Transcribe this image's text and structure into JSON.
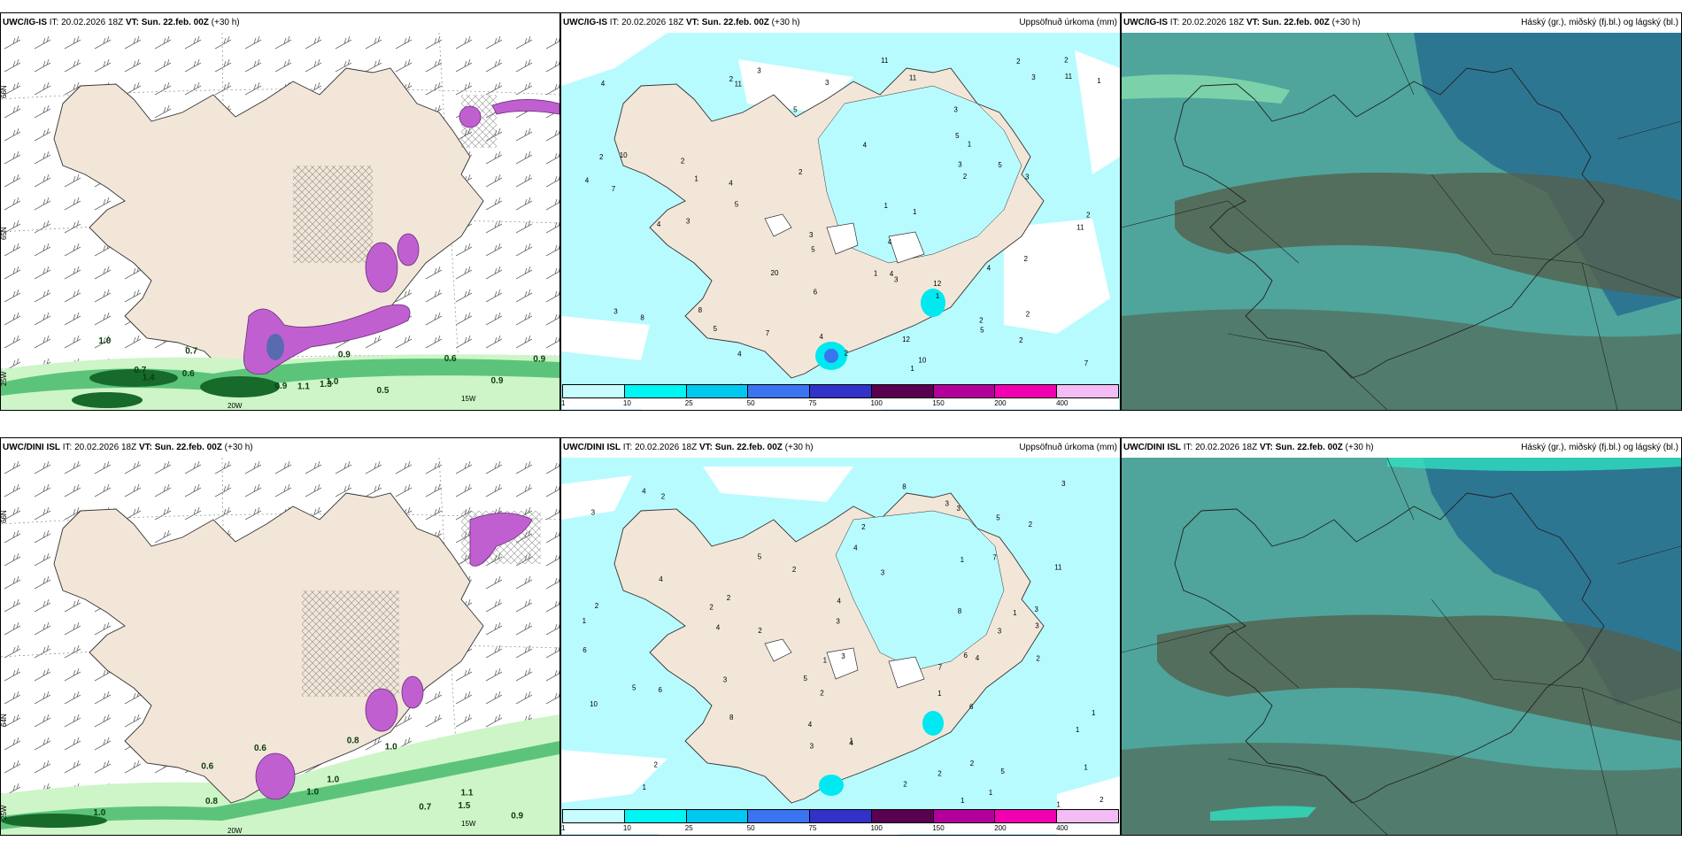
{
  "rows": [
    {
      "model": "UWC/IG-IS",
      "it_label": "IT:",
      "it_value": "20.02.2026 18Z",
      "vt_label": "VT:",
      "vt_value": "Sun. 22.feb. 00Z",
      "lead": "(+30 h)",
      "precip_labels": [
        "10",
        "11",
        "8",
        "2",
        "5",
        "12",
        "11",
        "5",
        "5",
        "5",
        "8",
        "2",
        "3",
        "4",
        "2",
        "2",
        "7",
        "3",
        "4",
        "3",
        "2",
        "3",
        "4",
        "5",
        "1",
        "1",
        "3",
        "1",
        "2",
        "5",
        "1",
        "2",
        "3",
        "7",
        "3",
        "4",
        "11",
        "10",
        "2",
        "12",
        "3",
        "1",
        "1",
        "2",
        "11",
        "2",
        "1",
        "6",
        "4",
        "11",
        "20",
        "4",
        "4",
        "5",
        "4",
        "7",
        "2",
        "2",
        "4",
        "3",
        "4",
        "1",
        "3",
        "4",
        "2"
      ],
      "wind_green_labels": [
        "0.9",
        "1.0",
        "0.9",
        "1.0",
        "0.9",
        "1.4",
        "1.3",
        "0.7",
        "0.6",
        "0.7",
        "0.6",
        "0.9",
        "1.1",
        "0.5"
      ]
    },
    {
      "model": "UWC/DINI ISL",
      "it_label": "IT:",
      "it_value": "20.02.2026 18Z",
      "vt_label": "VT:",
      "vt_value": "Sun. 22.feb. 00Z",
      "lead": "(+30 h)",
      "precip_labels": [
        "1",
        "1",
        "1",
        "1",
        "2",
        "7",
        "3",
        "4",
        "1",
        "1",
        "6",
        "7",
        "10",
        "6",
        "8",
        "1",
        "2",
        "5",
        "5",
        "2",
        "2",
        "6",
        "8",
        "3",
        "3",
        "2",
        "4",
        "1",
        "2",
        "6",
        "11",
        "8",
        "2",
        "2",
        "2",
        "1",
        "3",
        "3",
        "4",
        "1",
        "5",
        "3",
        "2",
        "4",
        "1",
        "5",
        "3",
        "2",
        "1",
        "2",
        "4",
        "2",
        "3",
        "5",
        "3",
        "4",
        "3",
        "4",
        "3",
        "1",
        "2",
        "3",
        "4",
        "2",
        "4"
      ],
      "wind_green_labels": [
        "1.0",
        "1.1",
        "1.0",
        "1.0",
        "0.6",
        "0.8",
        "1.5",
        "1.0",
        "0.7",
        "0.8",
        "0.9",
        "0.6"
      ]
    }
  ],
  "precip_title": "Uppsöfnuð úrkoma (mm)",
  "cloud_title": "Háský (gr.), miðský (fj.bl.) og lágský (bl.)",
  "colorbar": {
    "labels": [
      "1",
      "10",
      "25",
      "50",
      "75",
      "100",
      "150",
      "200",
      "400"
    ],
    "colors": [
      "#c8fcff",
      "#00f5f5",
      "#00c8f0",
      "#3a74f0",
      "#3232c8",
      "#5a0050",
      "#b4009a",
      "#f000b0",
      "#f4bcf4"
    ]
  },
  "axes": {
    "lat_labels": [
      "66N",
      "65N",
      "64N"
    ],
    "lon_labels": [
      "20W",
      "15W"
    ],
    "left_lon_labels": [
      "25W",
      "25W"
    ]
  },
  "colors": {
    "land": "#f2e6d8",
    "precip_light": "#b8fbff",
    "precip_cyan": "#00e8f0",
    "green_light": "#cdf5c8",
    "green_mid": "#5cc47a",
    "green_dark": "#176a2a",
    "purple": "#c060d0",
    "cloud_teal": "#4fa59c",
    "cloud_blue": "#276d91",
    "cloud_brown": "#54604e"
  }
}
